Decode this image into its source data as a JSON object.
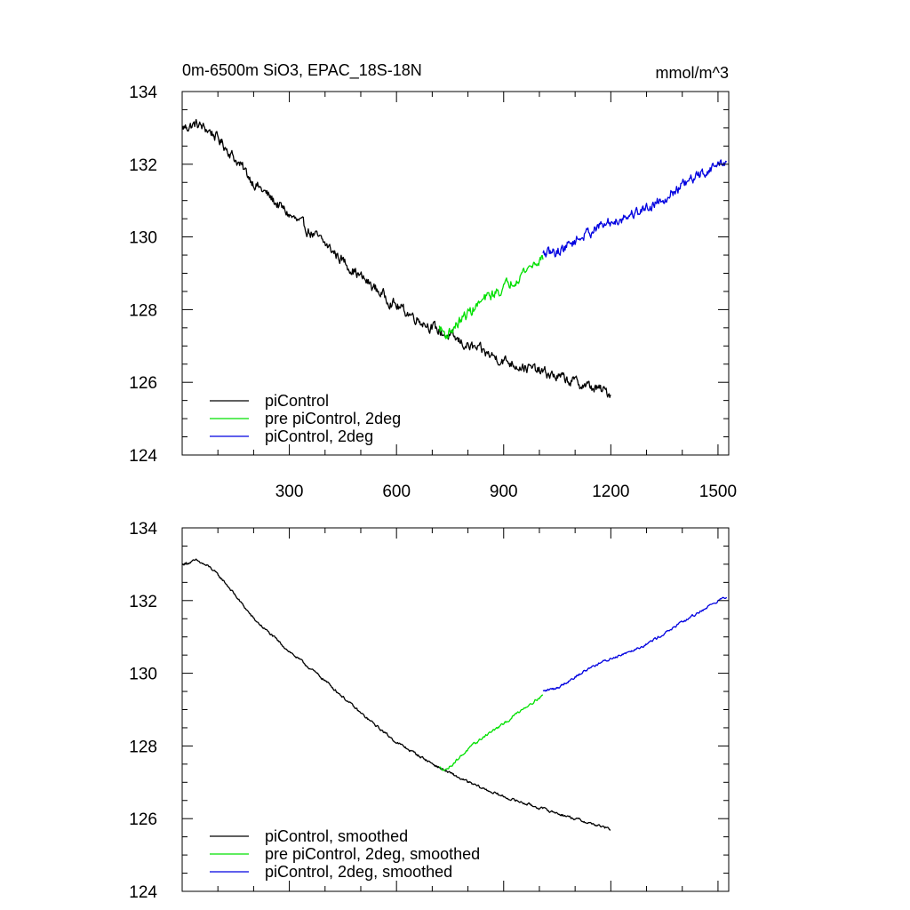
{
  "chart_data": [
    {
      "type": "line",
      "title": "0m-6500m SiO3, EPAC_18S-18N",
      "units": "mmol/m^3",
      "xlabel": "",
      "ylabel": "",
      "xlim": [
        0,
        1530
      ],
      "ylim": [
        124,
        134
      ],
      "xticks": [
        300,
        600,
        900,
        1200,
        1500
      ],
      "xtick_labels": [
        "300",
        "600",
        "900",
        "1200",
        "1500"
      ],
      "yticks": [
        124,
        126,
        128,
        130,
        132,
        134
      ],
      "ytick_labels": [
        "124",
        "126",
        "128",
        "130",
        "132",
        "134"
      ],
      "legend_position": "bottom-left",
      "series": [
        {
          "name": "piControl",
          "color": "#000000",
          "noise": 0.12,
          "x": [
            1,
            40,
            80,
            120,
            200,
            300,
            400,
            500,
            600,
            720,
            800,
            900,
            1000,
            1100,
            1200
          ],
          "y": [
            133.0,
            133.1,
            132.9,
            132.5,
            131.5,
            130.6,
            129.8,
            128.9,
            128.1,
            127.4,
            127.0,
            126.6,
            126.3,
            126.0,
            125.7
          ]
        },
        {
          "name": "pre piControl, 2deg",
          "color": "#00e000",
          "noise": 0.12,
          "x": [
            720,
            740,
            800,
            850,
            900,
            950,
            1010
          ],
          "y": [
            127.5,
            127.3,
            127.9,
            128.3,
            128.6,
            129.0,
            129.45
          ]
        },
        {
          "name": "piControl, 2deg",
          "color": "#0000e0",
          "noise": 0.12,
          "x": [
            1010,
            1050,
            1100,
            1150,
            1200,
            1300,
            1400,
            1450,
            1500,
            1525
          ],
          "y": [
            129.5,
            129.6,
            129.9,
            130.2,
            130.4,
            130.8,
            131.4,
            131.7,
            132.0,
            132.1
          ]
        }
      ]
    },
    {
      "type": "line",
      "title": "",
      "units": "",
      "xlabel": "",
      "ylabel": "",
      "xlim": [
        0,
        1530
      ],
      "ylim": [
        124,
        134
      ],
      "xticks": [
        300,
        600,
        900,
        1200,
        1500
      ],
      "xtick_labels": [],
      "yticks": [
        124,
        126,
        128,
        130,
        132,
        134
      ],
      "ytick_labels": [
        "124",
        "126",
        "128",
        "130",
        "132",
        "134"
      ],
      "legend_position": "bottom-left",
      "series": [
        {
          "name": "piControl, smoothed",
          "color": "#000000",
          "noise": 0.03,
          "x": [
            1,
            40,
            80,
            120,
            200,
            300,
            400,
            500,
            600,
            720,
            800,
            900,
            1000,
            1100,
            1200
          ],
          "y": [
            133.0,
            133.1,
            132.9,
            132.5,
            131.5,
            130.6,
            129.8,
            128.9,
            128.1,
            127.4,
            127.0,
            126.6,
            126.3,
            126.0,
            125.7
          ]
        },
        {
          "name": "pre piControl, 2deg, smoothed",
          "color": "#00e000",
          "noise": 0.03,
          "x": [
            720,
            740,
            800,
            850,
            900,
            950,
            1010
          ],
          "y": [
            127.4,
            127.35,
            127.9,
            128.3,
            128.6,
            129.0,
            129.4
          ]
        },
        {
          "name": "piControl, 2deg, smoothed",
          "color": "#0000e0",
          "noise": 0.03,
          "x": [
            1010,
            1050,
            1100,
            1150,
            1200,
            1300,
            1400,
            1450,
            1500,
            1525
          ],
          "y": [
            129.5,
            129.6,
            129.9,
            130.2,
            130.4,
            130.8,
            131.4,
            131.7,
            132.0,
            132.1
          ]
        }
      ]
    }
  ]
}
